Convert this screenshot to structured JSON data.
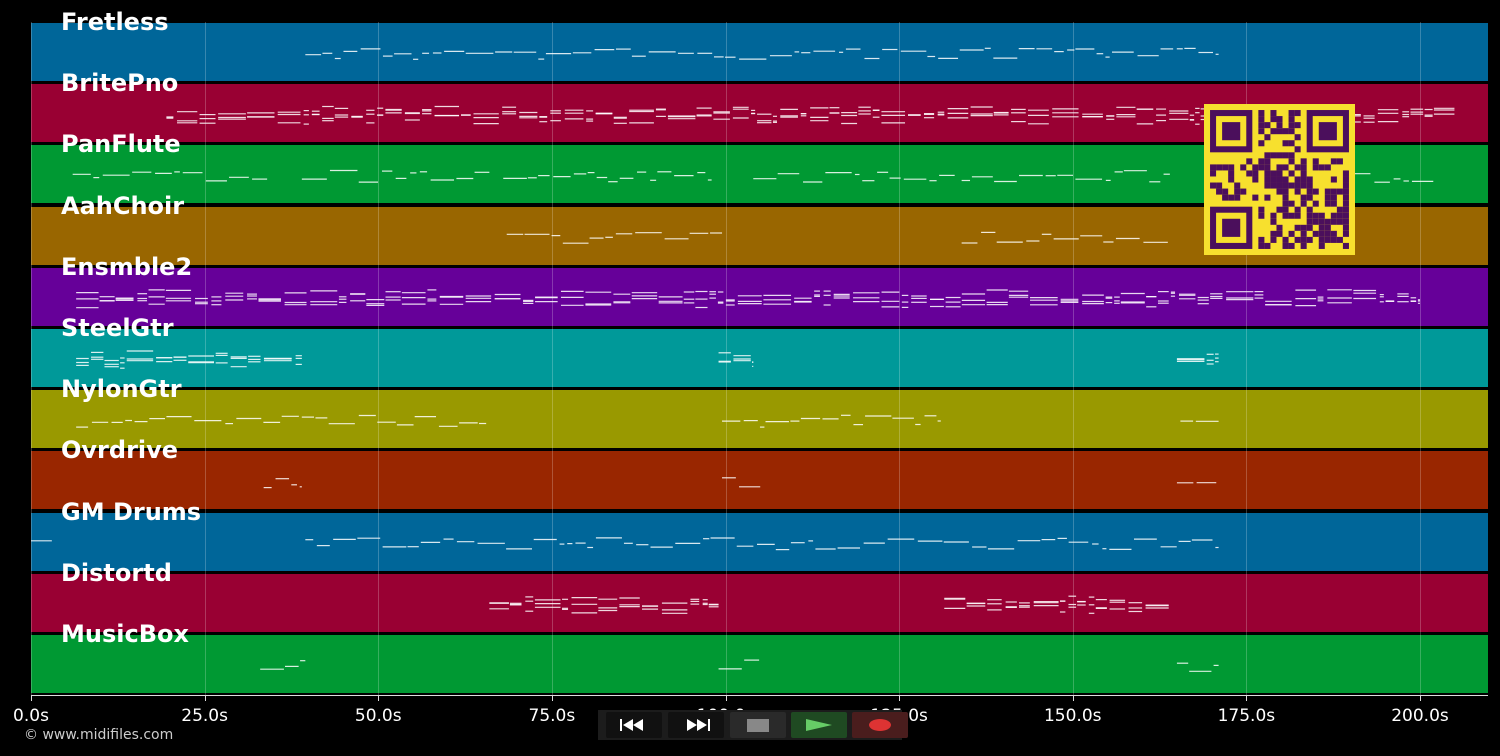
{
  "tracks": [
    {
      "name": "Fretless",
      "color": "#006699"
    },
    {
      "name": "BritePno",
      "color": "#990033"
    },
    {
      "name": "PanFlute",
      "color": "#009933"
    },
    {
      "name": "AahChoir",
      "color": "#996600"
    },
    {
      "name": "Ensmble2",
      "color": "#660099"
    },
    {
      "name": "SteelGtr",
      "color": "#009999"
    },
    {
      "name": "NylonGtr",
      "color": "#999900"
    },
    {
      "name": "Ovrdrive",
      "color": "#992600"
    },
    {
      "name": "GM Drums",
      "color": "#006699"
    },
    {
      "name": "Distortd",
      "color": "#990033"
    },
    {
      "name": "MusicBox",
      "color": "#009933"
    }
  ],
  "time_axis": {
    "ticks": [
      "0.0s",
      "25.0s",
      "50.0s",
      "75.0s",
      "100.0s",
      "125.0s",
      "150.0s",
      "175.0s",
      "200.0s"
    ],
    "tick_values": [
      0,
      25,
      50,
      75,
      100,
      125,
      150,
      175,
      200
    ],
    "max_seconds": 210
  },
  "note_segments": [
    {
      "track": 0,
      "ranges": [
        [
          39.5,
          171
        ]
      ]
    },
    {
      "track": 1,
      "ranges": [
        [
          19.5,
          205
        ]
      ]
    },
    {
      "track": 2,
      "ranges": [
        [
          6,
          34
        ],
        [
          39,
          66
        ],
        [
          68,
          98
        ],
        [
          104,
          133
        ],
        [
          134,
          164
        ],
        [
          170,
          202
        ]
      ]
    },
    {
      "track": 3,
      "ranges": [
        [
          68.5,
          99.5
        ],
        [
          134,
          164
        ]
      ]
    },
    {
      "track": 4,
      "ranges": [
        [
          6.5,
          200
        ]
      ]
    },
    {
      "track": 5,
      "ranges": [
        [
          6.5,
          39
        ],
        [
          99,
          104
        ],
        [
          165,
          171
        ]
      ]
    },
    {
      "track": 6,
      "ranges": [
        [
          6.5,
          66
        ],
        [
          99.5,
          131
        ],
        [
          165.5,
          171
        ]
      ]
    },
    {
      "track": 7,
      "ranges": [
        [
          33.5,
          39
        ],
        [
          99.5,
          105
        ],
        [
          165,
          171
        ]
      ]
    },
    {
      "track": 8,
      "ranges": [
        [
          0,
          3
        ],
        [
          39.5,
          171
        ]
      ]
    },
    {
      "track": 9,
      "ranges": [
        [
          66,
          99
        ],
        [
          131.5,
          164
        ]
      ]
    },
    {
      "track": 10,
      "ranges": [
        [
          33,
          39.5
        ],
        [
          99,
          105
        ],
        [
          165,
          171
        ]
      ]
    }
  ],
  "transport": {
    "rewind_icon": "rewind-icon",
    "fast_forward_icon": "fast-forward-icon",
    "stop_icon": "stop-icon",
    "play_icon": "play-icon",
    "record_icon": "record-icon",
    "colors": {
      "stop": "#888888",
      "play": "#66cc66",
      "record": "#dd3333"
    }
  },
  "credit": "© www.midifiles.com"
}
